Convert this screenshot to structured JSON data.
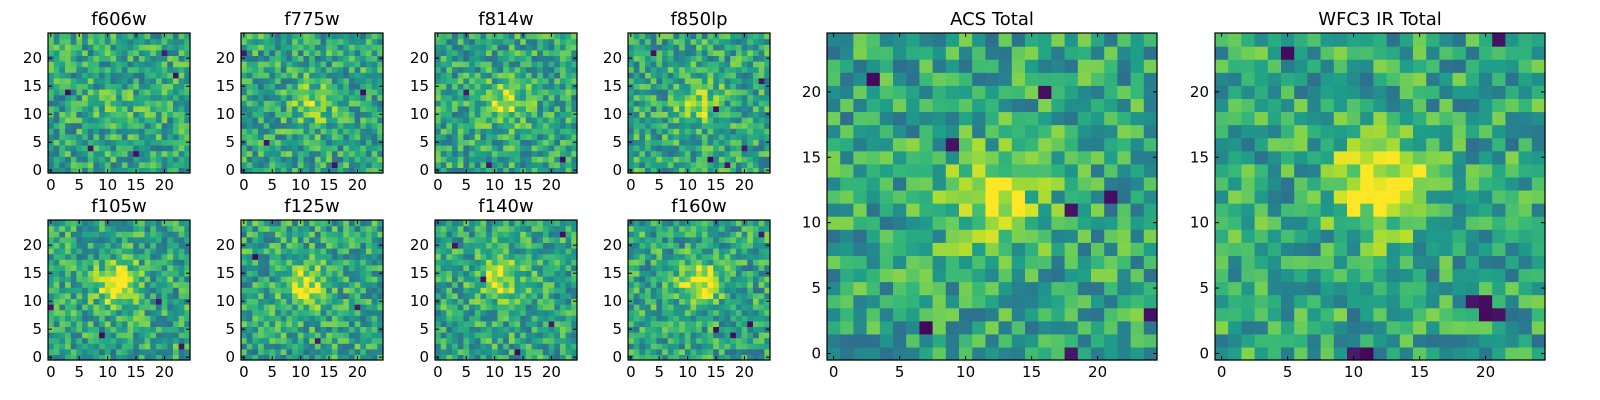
{
  "chart_data": [
    {
      "type": "heatmap",
      "name": "f606w",
      "title": "f606w",
      "xlim": [
        0,
        24
      ],
      "ylim": [
        0,
        24
      ],
      "x_ticks": [
        "0",
        "5",
        "10",
        "15",
        "20"
      ],
      "y_ticks": [
        "0",
        "5",
        "10",
        "15",
        "20"
      ],
      "grid_size": 25,
      "colormap": "viridis",
      "value_range": [
        0,
        1
      ],
      "source_center": [
        12,
        12
      ],
      "source_peak": 0.12,
      "noise_seed": 11,
      "dip_cells": [
        [
          22,
          17
        ],
        [
          7,
          4
        ],
        [
          15,
          3
        ],
        [
          20,
          21
        ],
        [
          3,
          14
        ]
      ]
    },
    {
      "type": "heatmap",
      "name": "f775w",
      "title": "f775w",
      "xlim": [
        0,
        24
      ],
      "ylim": [
        0,
        24
      ],
      "x_ticks": [
        "0",
        "5",
        "10",
        "15",
        "20"
      ],
      "y_ticks": [
        "0",
        "5",
        "10",
        "15",
        "20"
      ],
      "grid_size": 25,
      "colormap": "viridis",
      "value_range": [
        0,
        1
      ],
      "source_center": [
        12,
        12
      ],
      "source_peak": 0.25,
      "noise_seed": 23,
      "dip_cells": [
        [
          21,
          14
        ],
        [
          0,
          21
        ],
        [
          4,
          5
        ],
        [
          16,
          1
        ]
      ]
    },
    {
      "type": "heatmap",
      "name": "f814w",
      "title": "f814w",
      "xlim": [
        0,
        24
      ],
      "ylim": [
        0,
        24
      ],
      "x_ticks": [
        "0",
        "5",
        "10",
        "15",
        "20"
      ],
      "y_ticks": [
        "0",
        "5",
        "10",
        "15",
        "20"
      ],
      "grid_size": 25,
      "colormap": "viridis",
      "value_range": [
        0,
        1
      ],
      "source_center": [
        12,
        12
      ],
      "source_peak": 0.3,
      "noise_seed": 37,
      "dip_cells": [
        [
          22,
          2
        ],
        [
          9,
          1
        ],
        [
          5,
          14
        ]
      ]
    },
    {
      "type": "heatmap",
      "name": "f850lp",
      "title": "f850lp",
      "xlim": [
        0,
        24
      ],
      "ylim": [
        0,
        24
      ],
      "x_ticks": [
        "0",
        "5",
        "10",
        "15",
        "20"
      ],
      "y_ticks": [
        "0",
        "5",
        "10",
        "15",
        "20"
      ],
      "grid_size": 25,
      "colormap": "viridis",
      "value_range": [
        0,
        1
      ],
      "source_center": [
        12,
        12
      ],
      "source_peak": 0.28,
      "noise_seed": 41,
      "dip_cells": [
        [
          15,
          11
        ],
        [
          20,
          4
        ],
        [
          14,
          2
        ],
        [
          4,
          21
        ],
        [
          23,
          16
        ],
        [
          17,
          1
        ]
      ]
    },
    {
      "type": "heatmap",
      "name": "f105w",
      "title": "f105w",
      "xlim": [
        0,
        24
      ],
      "ylim": [
        0,
        24
      ],
      "x_ticks": [
        "0",
        "5",
        "10",
        "15",
        "20"
      ],
      "y_ticks": [
        "0",
        "5",
        "10",
        "15",
        "20"
      ],
      "grid_size": 25,
      "colormap": "viridis",
      "value_range": [
        0,
        1
      ],
      "source_center": [
        12,
        13
      ],
      "source_peak": 0.45,
      "noise_seed": 53,
      "dip_cells": [
        [
          0,
          9
        ],
        [
          9,
          4
        ],
        [
          23,
          2
        ],
        [
          19,
          10
        ]
      ]
    },
    {
      "type": "heatmap",
      "name": "f125w",
      "title": "f125w",
      "xlim": [
        0,
        24
      ],
      "ylim": [
        0,
        24
      ],
      "x_ticks": [
        "0",
        "5",
        "10",
        "15",
        "20"
      ],
      "y_ticks": [
        "0",
        "5",
        "10",
        "15",
        "20"
      ],
      "grid_size": 25,
      "colormap": "viridis",
      "value_range": [
        0,
        1
      ],
      "source_center": [
        11,
        13
      ],
      "source_peak": 0.35,
      "noise_seed": 67,
      "dip_cells": [
        [
          13,
          3
        ],
        [
          20,
          9
        ],
        [
          2,
          18
        ]
      ]
    },
    {
      "type": "heatmap",
      "name": "f140w",
      "title": "f140w",
      "xlim": [
        0,
        24
      ],
      "ylim": [
        0,
        24
      ],
      "x_ticks": [
        "0",
        "5",
        "10",
        "15",
        "20"
      ],
      "y_ticks": [
        "0",
        "5",
        "10",
        "15",
        "20"
      ],
      "grid_size": 25,
      "colormap": "viridis",
      "value_range": [
        0,
        1
      ],
      "source_center": [
        11,
        14
      ],
      "source_peak": 0.35,
      "noise_seed": 79,
      "dip_cells": [
        [
          22,
          22
        ],
        [
          3,
          20
        ],
        [
          14,
          1
        ],
        [
          20,
          6
        ],
        [
          8,
          14
        ]
      ]
    },
    {
      "type": "heatmap",
      "name": "f160w",
      "title": "f160w",
      "xlim": [
        0,
        24
      ],
      "ylim": [
        0,
        24
      ],
      "x_ticks": [
        "0",
        "5",
        "10",
        "15",
        "20"
      ],
      "y_ticks": [
        "0",
        "5",
        "10",
        "15",
        "20"
      ],
      "grid_size": 25,
      "colormap": "viridis",
      "value_range": [
        0,
        1
      ],
      "source_center": [
        12,
        13
      ],
      "source_peak": 0.45,
      "noise_seed": 83,
      "dip_cells": [
        [
          18,
          4
        ],
        [
          21,
          6
        ],
        [
          15,
          5
        ],
        [
          23,
          22
        ]
      ]
    },
    {
      "type": "heatmap",
      "name": "acs-total",
      "title": "ACS Total",
      "xlim": [
        0,
        24
      ],
      "ylim": [
        0,
        24
      ],
      "x_ticks": [
        "0",
        "5",
        "10",
        "15",
        "20"
      ],
      "y_ticks": [
        "0",
        "5",
        "10",
        "15",
        "20"
      ],
      "grid_size": 25,
      "colormap": "viridis",
      "value_range": [
        0,
        1
      ],
      "source_center": [
        12,
        12
      ],
      "source_peak": 0.32,
      "noise_seed": 97,
      "dip_cells": [
        [
          3,
          21
        ],
        [
          16,
          20
        ],
        [
          18,
          11
        ],
        [
          21,
          12
        ],
        [
          9,
          16
        ],
        [
          7,
          2
        ],
        [
          18,
          0
        ],
        [
          24,
          3
        ]
      ]
    },
    {
      "type": "heatmap",
      "name": "wfc3-ir-total",
      "title": "WFC3 IR Total",
      "xlim": [
        0,
        24
      ],
      "ylim": [
        0,
        24
      ],
      "x_ticks": [
        "0",
        "5",
        "10",
        "15",
        "20"
      ],
      "y_ticks": [
        "0",
        "5",
        "10",
        "15",
        "20"
      ],
      "grid_size": 25,
      "colormap": "viridis",
      "value_range": [
        0,
        1
      ],
      "source_center": [
        12,
        13
      ],
      "source_peak": 0.5,
      "noise_seed": 101,
      "dip_cells": [
        [
          19,
          4
        ],
        [
          20,
          4
        ],
        [
          20,
          3
        ],
        [
          21,
          3
        ],
        [
          10,
          0
        ],
        [
          11,
          0
        ],
        [
          5,
          23
        ],
        [
          21,
          24
        ]
      ]
    }
  ]
}
